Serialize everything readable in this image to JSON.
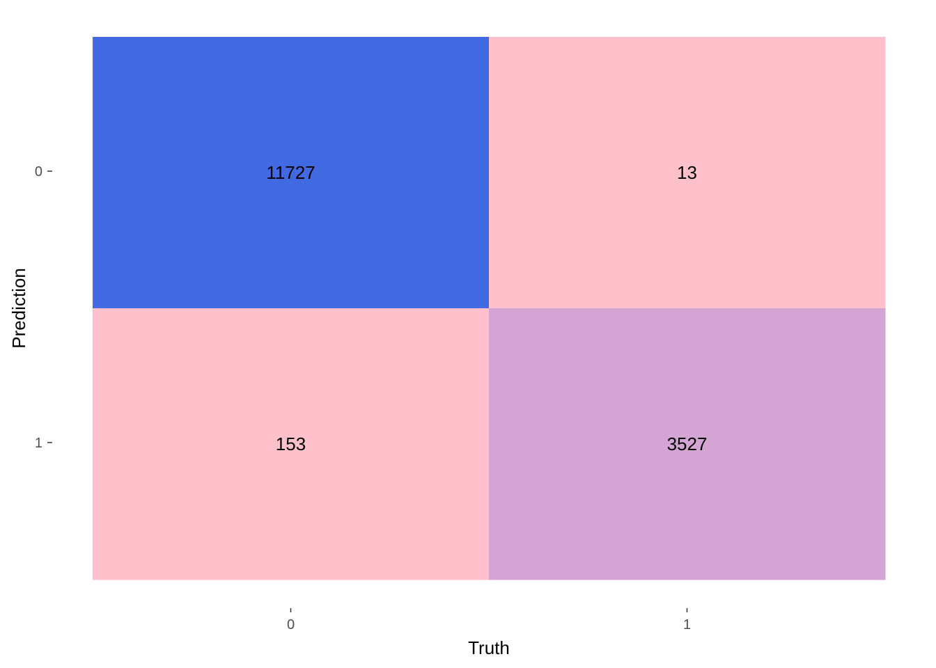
{
  "chart_data": {
    "type": "heatmap",
    "xlabel": "Truth",
    "ylabel": "Prediction",
    "x_categories": [
      "0",
      "1"
    ],
    "y_categories": [
      "0",
      "1"
    ],
    "cells": [
      {
        "truth": "0",
        "prediction": "0",
        "value": 11727,
        "label": "11727",
        "color": "#4169E1"
      },
      {
        "truth": "1",
        "prediction": "0",
        "value": 13,
        "label": "13",
        "color": "#FFC0CB"
      },
      {
        "truth": "0",
        "prediction": "1",
        "value": 153,
        "label": "153",
        "color": "#FFC0CB"
      },
      {
        "truth": "1",
        "prediction": "1",
        "value": 3527,
        "label": "3527",
        "color": "#D3A4D4"
      }
    ],
    "grid": false,
    "legend": "none"
  }
}
